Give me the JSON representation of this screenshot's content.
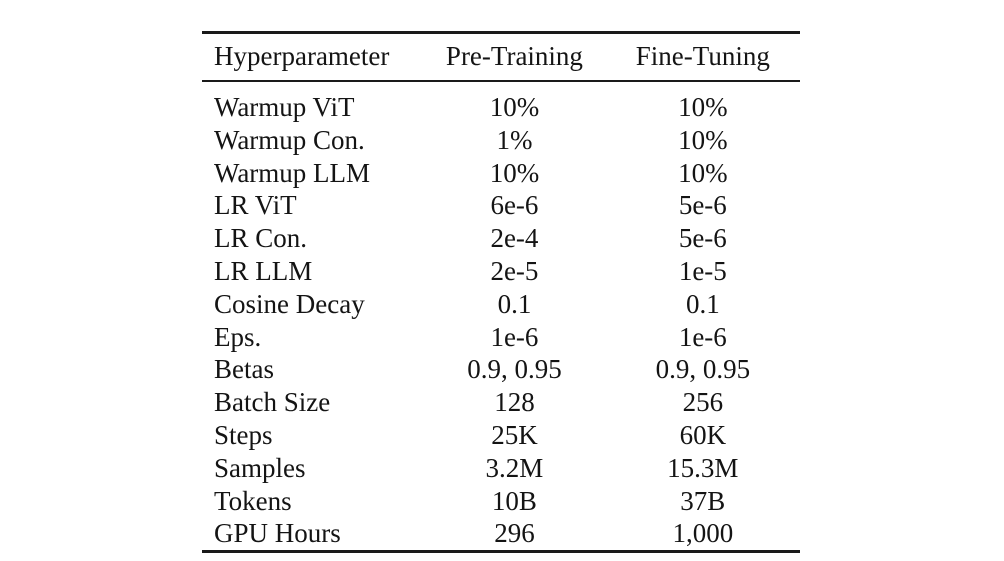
{
  "page": {
    "background": "#ffffff"
  },
  "table": {
    "title": "hyperparameter-table",
    "columns": [
      "Hyperparameter",
      "Pre-Training",
      "Fine-Tuning"
    ],
    "rows": [
      [
        "Warmup ViT",
        "10%",
        "10%"
      ],
      [
        "Warmup Con.",
        "1%",
        "10%"
      ],
      [
        "Warmup LLM",
        "10%",
        "10%"
      ],
      [
        "LR ViT",
        "6e-6",
        "5e-6"
      ],
      [
        "LR Con.",
        "2e-4",
        "5e-6"
      ],
      [
        "LR LLM",
        "2e-5",
        "1e-5"
      ],
      [
        "Cosine Decay",
        "0.1",
        "0.1"
      ],
      [
        "Eps.",
        "1e-6",
        "1e-6"
      ],
      [
        "Betas",
        "0.9, 0.95",
        "0.9, 0.95"
      ],
      [
        "Batch Size",
        "128",
        "256"
      ],
      [
        "Steps",
        "25K",
        "60K"
      ],
      [
        "Samples",
        "3.2M",
        "15.3M"
      ],
      [
        "Tokens",
        "10B",
        "37B"
      ],
      [
        "GPU Hours",
        "296",
        "1,000"
      ]
    ],
    "colors": {
      "rule": "#1a1a1a",
      "text": "#141414",
      "background": "#ffffff"
    }
  }
}
